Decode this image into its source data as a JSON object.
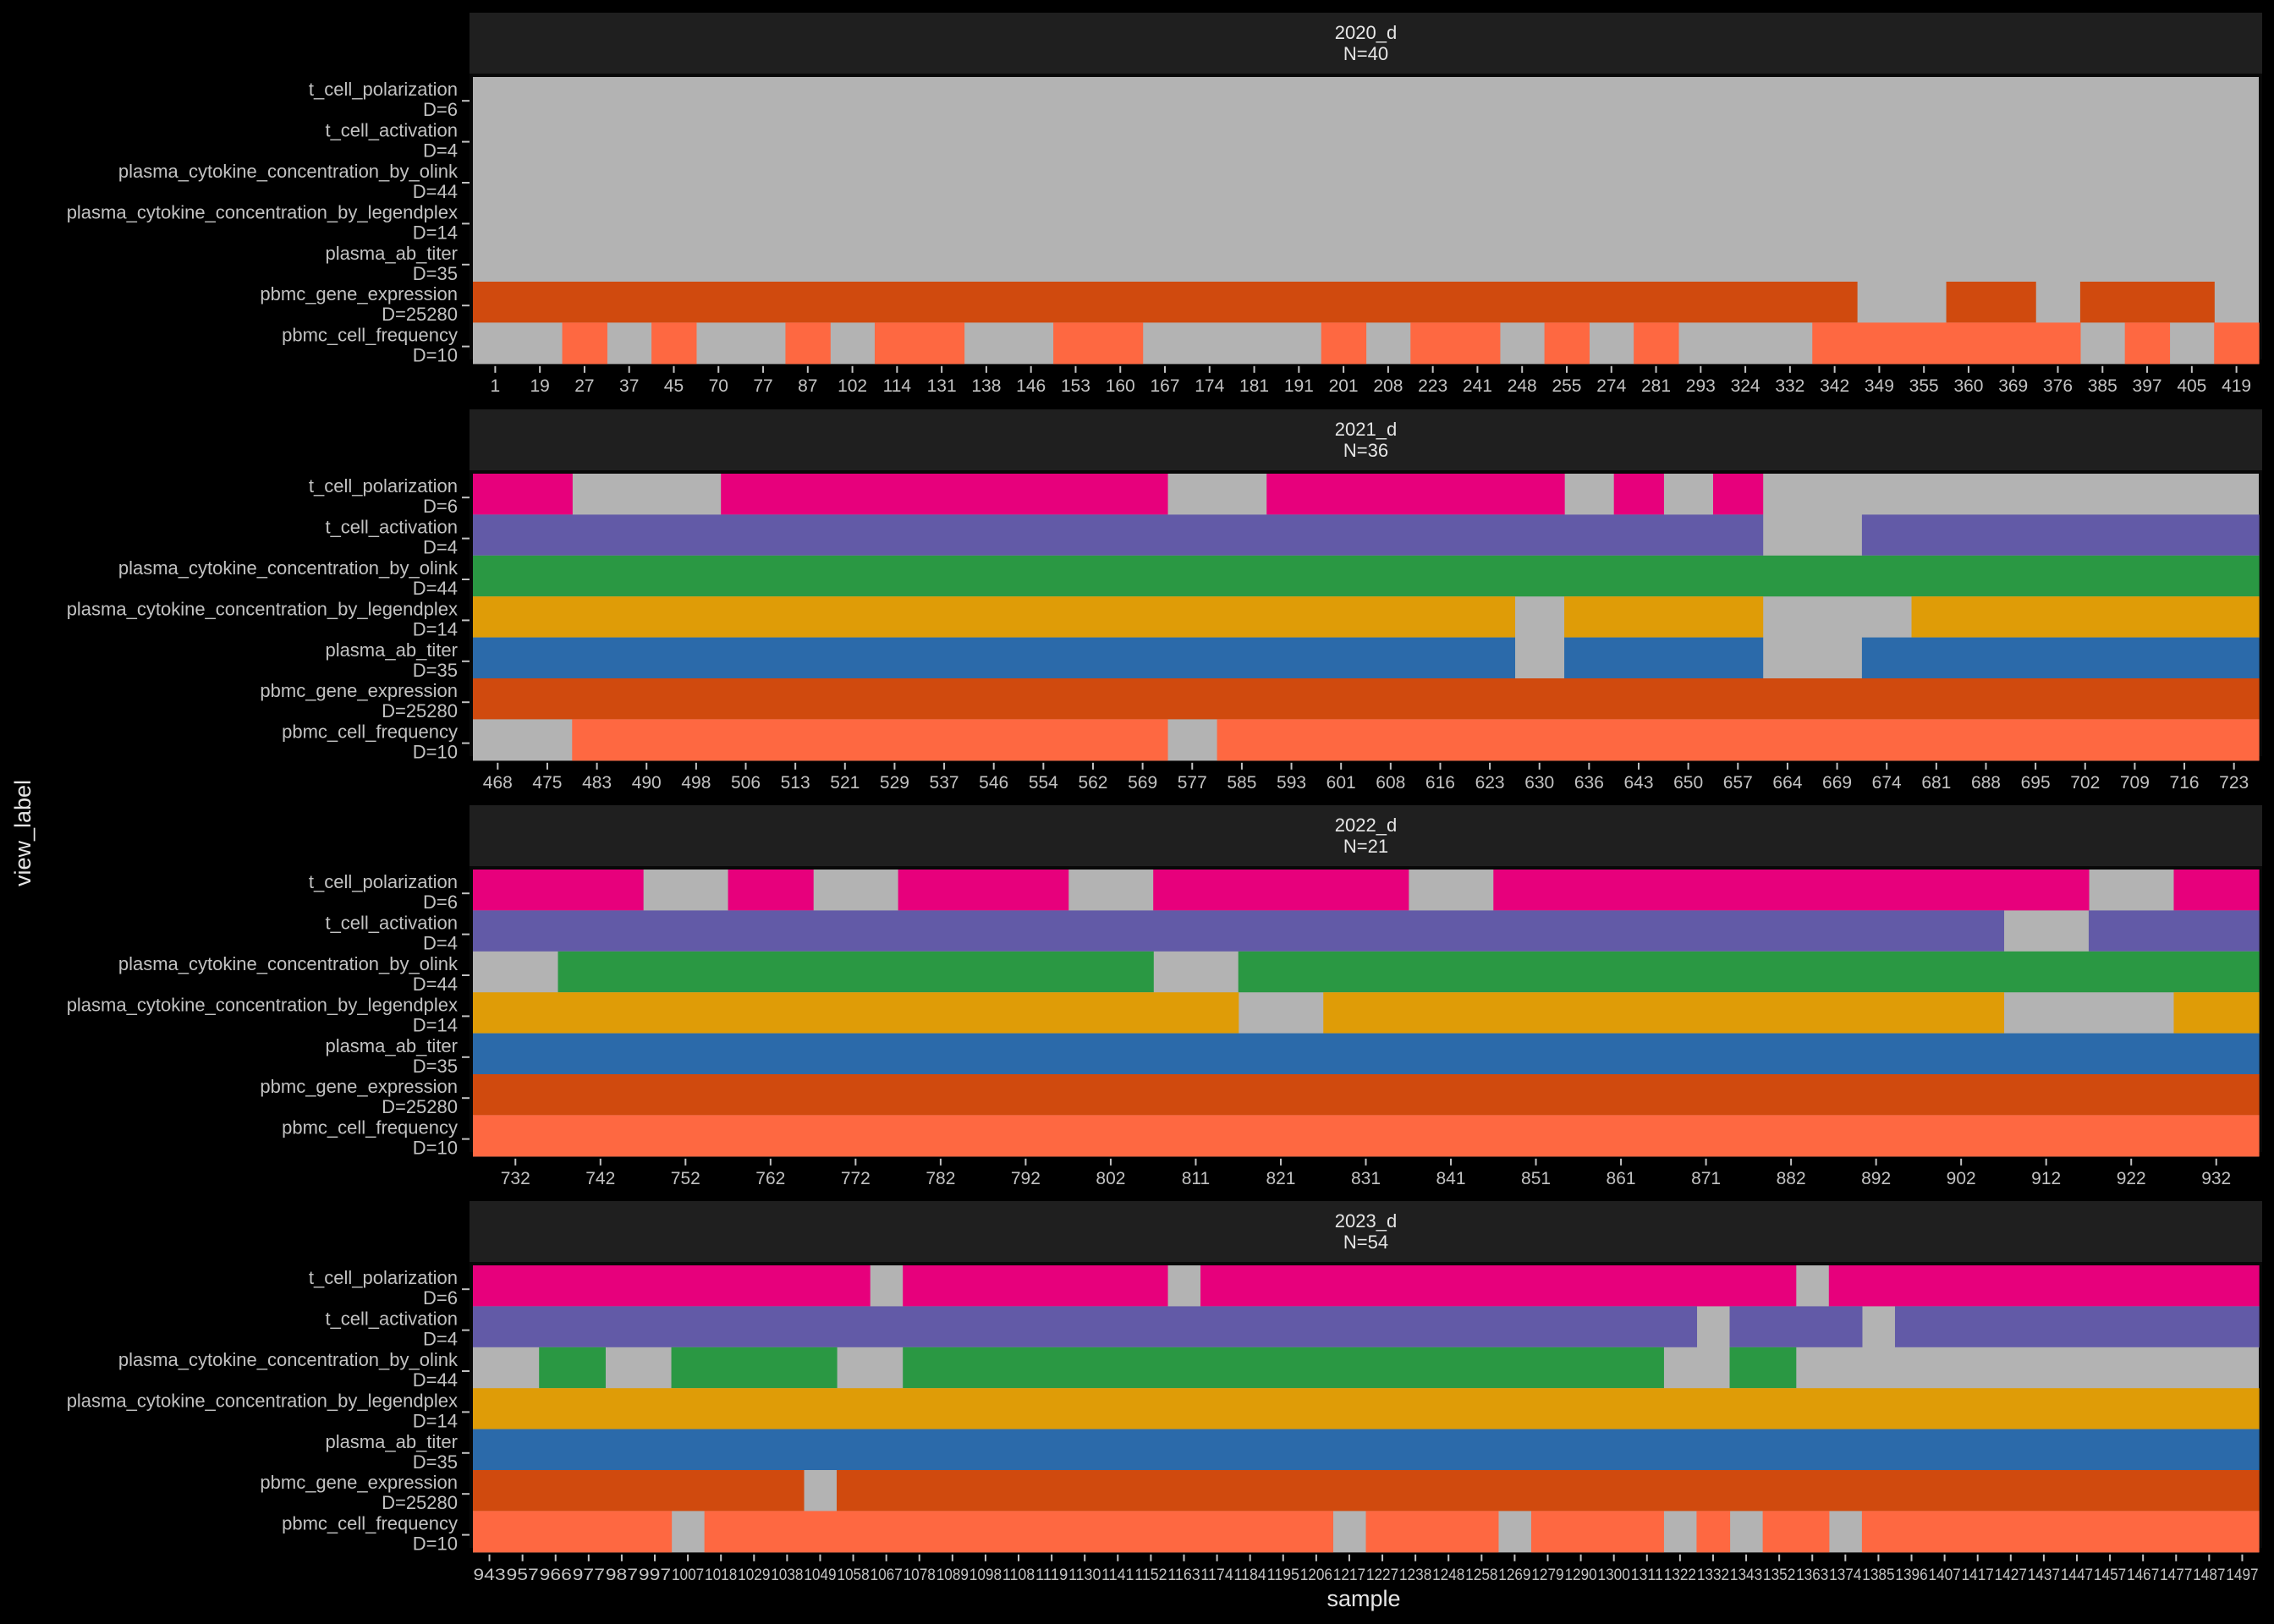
{
  "chart_data": {
    "type": "heatmap",
    "xlabel": "sample",
    "ylabel": "view_label",
    "colors": {
      "missing": "#b3b3b3",
      "t_cell_polarization": "#e7007c",
      "t_cell_activation": "#625aa7",
      "plasma_cytokine_concentration_by_olink": "#2a9843",
      "plasma_cytokine_concentration_by_legendplex": "#df9c07",
      "plasma_ab_titer": "#2b6aaa",
      "pbmc_gene_expression": "#d04a0e",
      "pbmc_cell_frequency": "#fe6841",
      "background": "#000000",
      "strip": "#1f1f1f",
      "text": "#c2c2c2"
    },
    "rows": [
      {
        "name": "t_cell_polarization",
        "dim": "D=6"
      },
      {
        "name": "t_cell_activation",
        "dim": "D=4"
      },
      {
        "name": "plasma_cytokine_concentration_by_olink",
        "dim": "D=44"
      },
      {
        "name": "plasma_cytokine_concentration_by_legendplex",
        "dim": "D=14"
      },
      {
        "name": "plasma_ab_titer",
        "dim": "D=35"
      },
      {
        "name": "pbmc_gene_expression",
        "dim": "D=25280"
      },
      {
        "name": "pbmc_cell_frequency",
        "dim": "D=10"
      }
    ],
    "panels": [
      {
        "title": "2020_d",
        "subtitle": "N=40",
        "n": 40,
        "ticks": [
          "1",
          "19",
          "27",
          "37",
          "45",
          "70",
          "77",
          "87",
          "102",
          "114",
          "131",
          "138",
          "146",
          "153",
          "160",
          "167",
          "174",
          "181",
          "191",
          "201",
          "208",
          "223",
          "241",
          "248",
          "255",
          "274",
          "281",
          "293",
          "324",
          "332",
          "342",
          "349",
          "355",
          "360",
          "369",
          "376",
          "385",
          "397",
          "405",
          "419"
        ],
        "present": [
          [],
          [],
          [],
          [],
          [],
          [
            [
              0,
              31
            ],
            [
              33,
              35
            ],
            [
              36,
              39
            ]
          ],
          [
            [
              2,
              3
            ],
            [
              4,
              5
            ],
            [
              7,
              8
            ],
            [
              9,
              11
            ],
            [
              13,
              15
            ],
            [
              19,
              20
            ],
            [
              21,
              23
            ],
            [
              24,
              25
            ],
            [
              26,
              27
            ],
            [
              30,
              36
            ],
            [
              37,
              38
            ],
            [
              39,
              40
            ]
          ]
        ]
      },
      {
        "title": "2021_d",
        "subtitle": "N=36",
        "n": 36,
        "ticks": [
          "468",
          "475",
          "483",
          "490",
          "498",
          "506",
          "513",
          "521",
          "529",
          "537",
          "546",
          "554",
          "562",
          "569",
          "577",
          "585",
          "593",
          "601",
          "608",
          "616",
          "623",
          "630",
          "636",
          "643",
          "650",
          "657",
          "664",
          "669",
          "674",
          "681",
          "688",
          "695",
          "702",
          "709",
          "716",
          "723"
        ],
        "present": [
          [
            [
              0,
              2
            ],
            [
              5,
              14
            ],
            [
              16,
              22
            ],
            [
              23,
              24
            ],
            [
              25,
              26
            ]
          ],
          [
            [
              0,
              26
            ],
            [
              28,
              36
            ]
          ],
          [
            [
              0,
              36
            ]
          ],
          [
            [
              0,
              21
            ],
            [
              22,
              26
            ],
            [
              29,
              36
            ]
          ],
          [
            [
              0,
              21
            ],
            [
              22,
              26
            ],
            [
              28,
              36
            ]
          ],
          [
            [
              0,
              36
            ]
          ],
          [
            [
              2,
              14
            ],
            [
              15,
              36
            ]
          ]
        ]
      },
      {
        "title": "2022_d",
        "subtitle": "N=21",
        "n": 21,
        "ticks": [
          "732",
          "742",
          "752",
          "762",
          "772",
          "782",
          "792",
          "802",
          "811",
          "821",
          "831",
          "841",
          "851",
          "861",
          "871",
          "882",
          "892",
          "902",
          "912",
          "922",
          "932"
        ],
        "present": [
          [
            [
              0,
              2
            ],
            [
              3,
              4
            ],
            [
              5,
              7
            ],
            [
              8,
              11
            ],
            [
              12,
              19
            ],
            [
              20,
              21
            ]
          ],
          [
            [
              0,
              18
            ],
            [
              19,
              21
            ]
          ],
          [
            [
              1,
              8
            ],
            [
              9,
              21
            ]
          ],
          [
            [
              0,
              9
            ],
            [
              10,
              18
            ],
            [
              20,
              21
            ]
          ],
          [
            [
              0,
              21
            ]
          ],
          [
            [
              0,
              21
            ]
          ],
          [
            [
              0,
              21
            ]
          ]
        ]
      },
      {
        "title": "2023_d",
        "subtitle": "N=54",
        "n": 54,
        "ticks": [
          "943",
          "957",
          "966",
          "977",
          "987",
          "997",
          "1007",
          "1018",
          "1029",
          "1038",
          "1049",
          "1058",
          "1067",
          "1078",
          "1089",
          "1098",
          "1108",
          "1119",
          "1130",
          "1141",
          "1152",
          "1163",
          "1174",
          "1184",
          "1195",
          "1206",
          "1217",
          "1227",
          "1238",
          "1248",
          "1258",
          "1269",
          "1279",
          "1290",
          "1300",
          "1311",
          "1322",
          "1332",
          "1343",
          "1352",
          "1363",
          "1374",
          "1385",
          "1396",
          "1407",
          "1417",
          "1427",
          "1437",
          "1447",
          "1457",
          "1467",
          "1477",
          "1487",
          "1497"
        ],
        "present": [
          [
            [
              0,
              12
            ],
            [
              13,
              21
            ],
            [
              22,
              40
            ],
            [
              41,
              54
            ]
          ],
          [
            [
              0,
              37
            ],
            [
              38,
              42
            ],
            [
              43,
              54
            ]
          ],
          [
            [
              2,
              4
            ],
            [
              6,
              11
            ],
            [
              13,
              36
            ],
            [
              38,
              40
            ]
          ],
          [
            [
              0,
              54
            ]
          ],
          [
            [
              0,
              54
            ]
          ],
          [
            [
              0,
              10
            ],
            [
              11,
              54
            ]
          ],
          [
            [
              0,
              6
            ],
            [
              7,
              26
            ],
            [
              27,
              31
            ],
            [
              32,
              36
            ],
            [
              37,
              38
            ],
            [
              39,
              41
            ],
            [
              42,
              54
            ]
          ]
        ]
      }
    ]
  }
}
